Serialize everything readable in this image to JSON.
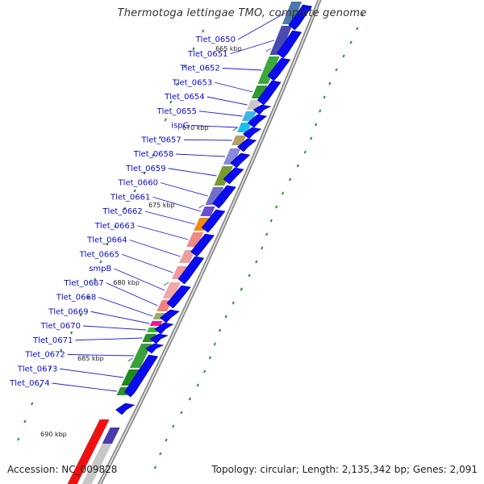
{
  "title": "Thermotoga lettingae TMO, complete genome",
  "footer": {
    "accession": "Accession: NC_009828",
    "stats": "Topology: circular; Length: 2,135,342 bp; Genes: 2,091"
  },
  "colors": {
    "label": "#0a0ad0",
    "leader": "#1a1ae0",
    "backbone": "#999999",
    "gc_dash": "#2f8f2f",
    "cds_reverse": "#0a0aee"
  },
  "ticks": [
    "665 kbp",
    "670 kbp",
    "675 kbp",
    "680 kbp",
    "685 kbp",
    "690 kbp"
  ],
  "genes": [
    {
      "name": "Tlet_0650",
      "color": "#4a7aaa"
    },
    {
      "name": "Tlet_0651",
      "color": "#4a4ab0"
    },
    {
      "name": "Tlet_0652",
      "color": "#3aa83a"
    },
    {
      "name": "Tlet_0653",
      "color": "#2e9a2e"
    },
    {
      "name": "Tlet_0654",
      "color": "#c8c8c8"
    },
    {
      "name": "Tlet_0655",
      "color": "#3ab6e8"
    },
    {
      "name": "ispG",
      "color": "#18c0f0"
    },
    {
      "name": "Tlet_0657",
      "color": "#b8a060"
    },
    {
      "name": "Tlet_0658",
      "color": "#8a88d8"
    },
    {
      "name": "Tlet_0659",
      "color": "#7a9a30"
    },
    {
      "name": "Tlet_0660",
      "color": "#7070c8"
    },
    {
      "name": "Tlet_0661",
      "color": "#6a50d0"
    },
    {
      "name": "Tlet_0662",
      "color": "#f08a10"
    },
    {
      "name": "Tlet_0663",
      "color": "#f08888"
    },
    {
      "name": "Tlet_0664",
      "color": "#e8a0a0"
    },
    {
      "name": "Tlet_0665",
      "color": "#f49a9a"
    },
    {
      "name": "smpB",
      "color": "#f3a6a6"
    },
    {
      "name": "Tlet_0667",
      "color": "#f08080"
    },
    {
      "name": "Tlet_0668",
      "color": "#98b060"
    },
    {
      "name": "Tlet_0669",
      "color": "#f01890"
    },
    {
      "name": "Tlet_0670",
      "color": "#38b838"
    },
    {
      "name": "Tlet_0671",
      "color": "#2a8c2a"
    },
    {
      "name": "Tlet_0672",
      "color": "#3aa03a"
    },
    {
      "name": "Tlet_0673",
      "color": "#1e8a1e"
    },
    {
      "name": "Tlet_0674",
      "color": "#2a962a"
    }
  ]
}
